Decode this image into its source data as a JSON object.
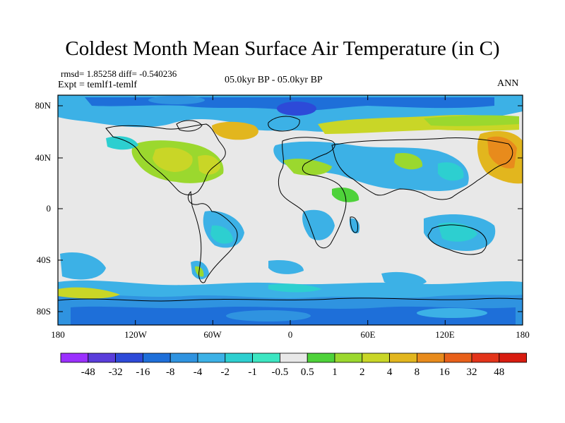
{
  "title": "Coldest Month Mean Surface Air Temperature (in C)",
  "header": {
    "stats": "rmsd= 1.85258 diff= -0.540236",
    "expt": "Expt = temlf1-temlf",
    "period": "05.0kyr BP - 05.0kyr BP",
    "season": "ANN"
  },
  "axes": {
    "y_ticks": [
      "80N",
      "40N",
      "0",
      "40S",
      "80S"
    ],
    "x_ticks": [
      "180",
      "120W",
      "60W",
      "0",
      "60E",
      "120E",
      "180"
    ]
  },
  "colorbar": {
    "labels": [
      "-48",
      "-32",
      "-16",
      "-8",
      "-4",
      "-2",
      "-1",
      "-0.5",
      "0.5",
      "1",
      "2",
      "4",
      "8",
      "16",
      "32",
      "48"
    ],
    "colors": [
      "#9b30ff",
      "#5a3ddb",
      "#2d4ad8",
      "#1e6fd9",
      "#2f93e0",
      "#3cb1e6",
      "#2dcfd0",
      "#3ce6c2",
      "#e8e8e8",
      "#4ed23a",
      "#9bd82e",
      "#c9d627",
      "#e2b61e",
      "#e88b1c",
      "#e8601a",
      "#e3341a",
      "#d81c10"
    ]
  }
}
